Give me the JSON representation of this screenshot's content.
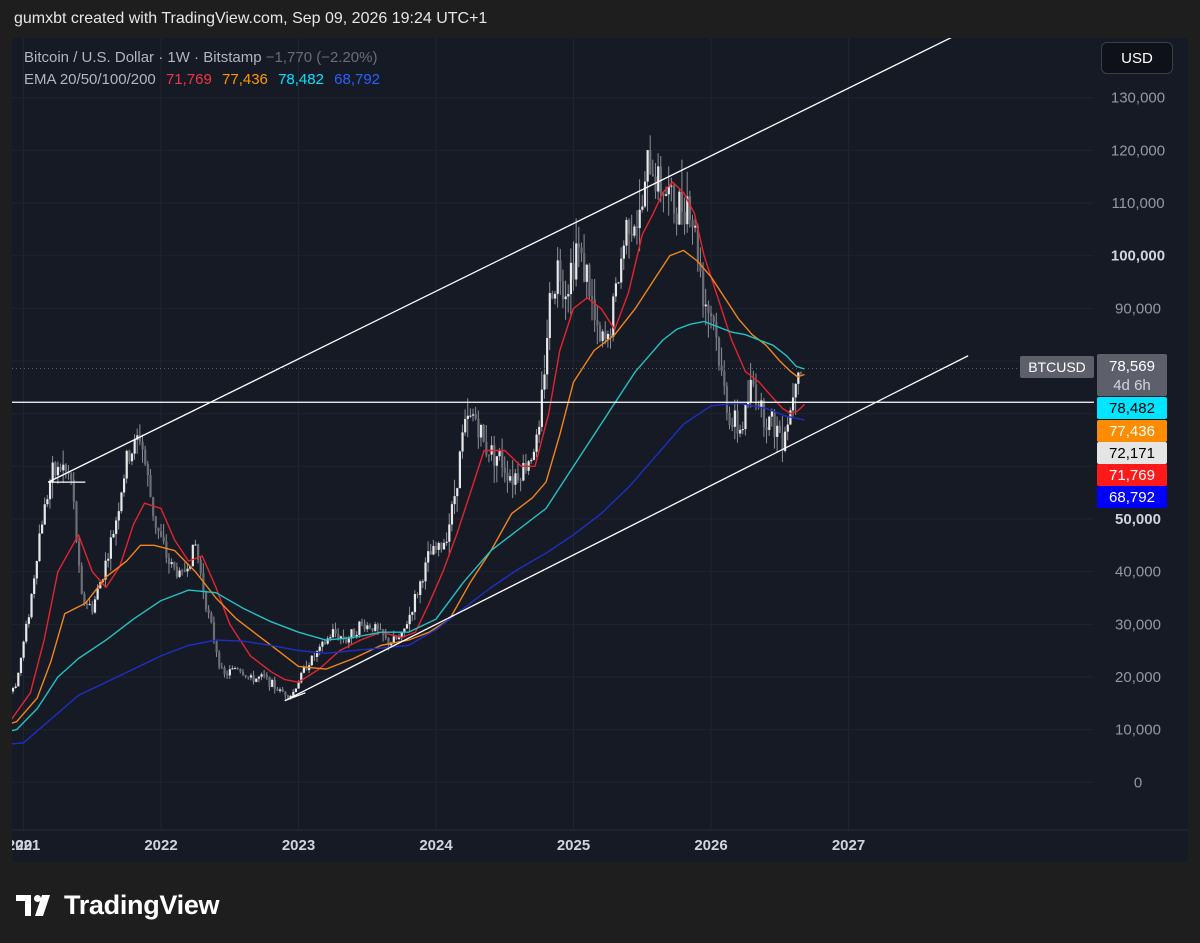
{
  "header": {
    "credit": "gumxbt created with TradingView.com, Sep 09, 2026 19:24 UTC+1"
  },
  "legend": {
    "symbol": "Bitcoin / U.S. Dollar · 1W · Bitstamp",
    "change": "−1,770 (−2.20%)",
    "ema_label": "EMA 20/50/100/200",
    "ema_values": [
      {
        "value": "71,769",
        "color": "#f23645"
      },
      {
        "value": "77,436",
        "color": "#ff9800"
      },
      {
        "value": "78,482",
        "color": "#00e5ff"
      },
      {
        "value": "68,792",
        "color": "#2962ff"
      }
    ]
  },
  "currency": "USD",
  "price_badges": {
    "symbol_tag": "BTCUSD",
    "last_price": "78,569",
    "countdown": "4d 6h",
    "ema100": "78,482",
    "ema50": "77,436",
    "hline": "72,171",
    "ema20": "71,769",
    "ema200": "68,792"
  },
  "colors": {
    "ema20": "#e3252f",
    "ema50": "#f2851c",
    "ema100": "#22c3c3",
    "ema200": "#1e2fc8",
    "candles": "#d9d9d9",
    "channel": "#ffffff"
  },
  "footer": {
    "brand": "TradingView"
  },
  "chart_data": {
    "type": "line",
    "title": "Bitcoin / U.S. Dollar · 1W · Bitstamp",
    "x_ticks": [
      "20",
      "2021",
      "2022",
      "2023",
      "2024",
      "2025",
      "2026",
      "2027"
    ],
    "y_ticks": [
      "0",
      "10,000",
      "20,000",
      "30,000",
      "40,000",
      "50,000",
      "90,000",
      "100,000",
      "110,000",
      "120,000",
      "130,000"
    ],
    "ylim": [
      -3000,
      135000
    ],
    "xlim": [
      2020.0,
      2027.95
    ],
    "price_series": {
      "name": "BTCUSD",
      "x": [
        2020.0,
        2020.3,
        2020.6,
        2020.8,
        2020.95,
        2021.05,
        2021.12,
        2021.2,
        2021.28,
        2021.35,
        2021.42,
        2021.5,
        2021.58,
        2021.65,
        2021.75,
        2021.85,
        2021.95,
        2022.05,
        2022.15,
        2022.25,
        2022.35,
        2022.45,
        2022.55,
        2022.65,
        2022.75,
        2022.85,
        2022.95,
        2023.05,
        2023.15,
        2023.25,
        2023.35,
        2023.45,
        2023.55,
        2023.65,
        2023.75,
        2023.85,
        2023.95,
        2024.05,
        2024.12,
        2024.2,
        2024.28,
        2024.35,
        2024.45,
        2024.55,
        2024.65,
        2024.75,
        2024.82,
        2024.88,
        2024.95,
        2025.02,
        2025.1,
        2025.18,
        2025.25,
        2025.32,
        2025.4,
        2025.48,
        2025.55,
        2025.6,
        2025.68,
        2025.75,
        2025.82,
        2025.88,
        2025.95,
        2026.02,
        2026.08,
        2026.15,
        2026.22,
        2026.3,
        2026.38,
        2026.45,
        2026.52,
        2026.58,
        2026.62,
        2026.67
      ],
      "y": [
        7200,
        9500,
        11000,
        13500,
        19000,
        34000,
        48000,
        58000,
        60000,
        57000,
        35000,
        33000,
        40000,
        47000,
        61000,
        66000,
        50000,
        42000,
        39000,
        45000,
        31000,
        20000,
        22000,
        19500,
        20000,
        17500,
        16500,
        22000,
        25000,
        28500,
        27000,
        30000,
        29500,
        26500,
        27500,
        35000,
        43000,
        45000,
        52000,
        67000,
        70000,
        64000,
        62000,
        58000,
        60000,
        66000,
        90000,
        98000,
        94000,
        102000,
        96000,
        83000,
        84000,
        95000,
        108000,
        106000,
        118000,
        115000,
        112000,
        108000,
        112000,
        105000,
        92000,
        88000,
        76000,
        68000,
        67000,
        76000,
        70000,
        68000,
        66000,
        71000,
        80000,
        78569
      ]
    },
    "series": [
      {
        "name": "EMA 20",
        "x": [
          2020.0,
          2020.5,
          2020.9,
          2021.05,
          2021.15,
          2021.25,
          2021.4,
          2021.5,
          2021.6,
          2021.7,
          2021.8,
          2021.88,
          2022.0,
          2022.1,
          2022.2,
          2022.3,
          2022.4,
          2022.5,
          2022.65,
          2022.8,
          2022.9,
          2023.0,
          2023.15,
          2023.3,
          2023.45,
          2023.6,
          2023.75,
          2023.85,
          2023.95,
          2024.05,
          2024.15,
          2024.25,
          2024.35,
          2024.5,
          2024.62,
          2024.72,
          2024.82,
          2024.9,
          2025.0,
          2025.1,
          2025.2,
          2025.3,
          2025.4,
          2025.5,
          2025.58,
          2025.65,
          2025.72,
          2025.8,
          2025.88,
          2025.95,
          2026.05,
          2026.15,
          2026.25,
          2026.35,
          2026.45,
          2026.52,
          2026.58,
          2026.63,
          2026.68
        ],
        "y": [
          7800,
          9300,
          11500,
          17000,
          27000,
          40000,
          47000,
          40000,
          37000,
          41000,
          49000,
          53000,
          52000,
          46000,
          42000,
          43000,
          37000,
          30000,
          24000,
          21000,
          19500,
          19000,
          21500,
          25000,
          27000,
          28500,
          27500,
          28500,
          34000,
          40000,
          47000,
          55000,
          63000,
          63000,
          60000,
          60000,
          70000,
          82000,
          90000,
          92000,
          90000,
          86000,
          93000,
          104000,
          108000,
          112000,
          114000,
          112000,
          108000,
          100000,
          92000,
          84000,
          78000,
          76000,
          73000,
          71000,
          70000,
          70500,
          71769
        ]
      },
      {
        "name": "EMA 50",
        "x": [
          2020.0,
          2020.6,
          2020.95,
          2021.1,
          2021.2,
          2021.3,
          2021.45,
          2021.6,
          2021.75,
          2021.85,
          2021.95,
          2022.1,
          2022.25,
          2022.4,
          2022.55,
          2022.7,
          2022.85,
          2023.0,
          2023.2,
          2023.4,
          2023.6,
          2023.8,
          2023.95,
          2024.1,
          2024.25,
          2024.4,
          2024.55,
          2024.7,
          2024.8,
          2024.9,
          2025.0,
          2025.15,
          2025.3,
          2025.45,
          2025.6,
          2025.7,
          2025.8,
          2025.9,
          2026.0,
          2026.1,
          2026.2,
          2026.3,
          2026.4,
          2026.5,
          2026.58,
          2026.63,
          2026.68
        ],
        "y": [
          7800,
          8800,
          11500,
          16000,
          23000,
          32000,
          34000,
          39000,
          42000,
          45000,
          45000,
          44000,
          40000,
          35000,
          31000,
          28000,
          25000,
          22000,
          21500,
          23500,
          26000,
          27000,
          28500,
          31000,
          38000,
          44000,
          51000,
          54000,
          57000,
          66000,
          76000,
          82000,
          85000,
          90000,
          96000,
          100000,
          101000,
          99000,
          96000,
          92000,
          88000,
          85000,
          83000,
          80000,
          78000,
          77000,
          77436
        ]
      },
      {
        "name": "EMA 100",
        "x": [
          2020.0,
          2020.6,
          2020.95,
          2021.1,
          2021.25,
          2021.4,
          2021.6,
          2021.8,
          2022.0,
          2022.2,
          2022.4,
          2022.6,
          2022.8,
          2023.0,
          2023.2,
          2023.4,
          2023.6,
          2023.8,
          2024.0,
          2024.2,
          2024.4,
          2024.6,
          2024.8,
          2025.0,
          2025.15,
          2025.3,
          2025.45,
          2025.55,
          2025.65,
          2025.75,
          2025.85,
          2025.95,
          2026.05,
          2026.15,
          2026.25,
          2026.35,
          2026.45,
          2026.55,
          2026.62,
          2026.68
        ],
        "y": [
          7500,
          8000,
          10000,
          14000,
          20000,
          23500,
          27000,
          31000,
          34500,
          36500,
          36000,
          33000,
          30500,
          28500,
          27000,
          27500,
          28500,
          28500,
          31000,
          38000,
          44000,
          48000,
          52000,
          60000,
          66000,
          72000,
          78000,
          81000,
          84000,
          86000,
          87000,
          87500,
          86500,
          85500,
          85000,
          84000,
          83000,
          81000,
          79000,
          78482
        ]
      },
      {
        "name": "EMA 200",
        "x": [
          2020.0,
          2020.6,
          2021.0,
          2021.2,
          2021.4,
          2021.6,
          2021.8,
          2022.0,
          2022.2,
          2022.4,
          2022.6,
          2022.8,
          2023.0,
          2023.2,
          2023.4,
          2023.6,
          2023.8,
          2024.0,
          2024.2,
          2024.4,
          2024.6,
          2024.8,
          2025.0,
          2025.2,
          2025.4,
          2025.6,
          2025.8,
          2026.0,
          2026.2,
          2026.4,
          2026.55,
          2026.68
        ],
        "y": [
          5500,
          6500,
          7500,
          12000,
          16500,
          19000,
          21500,
          24000,
          26000,
          27000,
          26800,
          26000,
          25000,
          24500,
          25000,
          25500,
          26000,
          29000,
          33000,
          37000,
          40500,
          43500,
          47000,
          51000,
          56000,
          62000,
          68000,
          71500,
          72000,
          71000,
          69500,
          68792
        ]
      }
    ],
    "channel_lines": [
      {
        "name": "upper",
        "x": [
          2021.18,
          2027.87
        ],
        "y": [
          57000,
          143000
        ]
      },
      {
        "name": "lower",
        "x": [
          2022.9,
          2027.87
        ],
        "y": [
          15500,
          81000
        ]
      }
    ],
    "horizontal_line": 72171,
    "last_price_line": 78569
  }
}
